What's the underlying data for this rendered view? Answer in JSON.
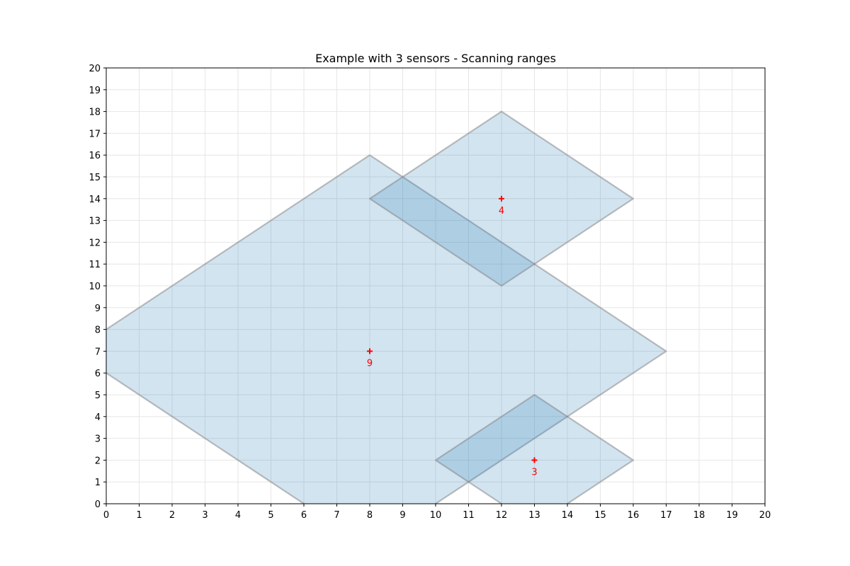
{
  "chart_data": {
    "type": "area",
    "title": "Example with 3 sensors - Scanning ranges",
    "xlabel": "",
    "ylabel": "",
    "xlim": [
      0,
      20
    ],
    "ylim": [
      0,
      20
    ],
    "x_ticks": [
      0,
      1,
      2,
      3,
      4,
      5,
      6,
      7,
      8,
      9,
      10,
      11,
      12,
      13,
      14,
      15,
      16,
      17,
      18,
      19,
      20
    ],
    "y_ticks": [
      0,
      1,
      2,
      3,
      4,
      5,
      6,
      7,
      8,
      9,
      10,
      11,
      12,
      13,
      14,
      15,
      16,
      17,
      18,
      19,
      20
    ],
    "grid": true,
    "sensors": [
      {
        "label": "9",
        "x": 8,
        "y": 7,
        "range": 9
      },
      {
        "label": "4",
        "x": 12,
        "y": 14,
        "range": 4
      },
      {
        "label": "3",
        "x": 13,
        "y": 2,
        "range": 3
      }
    ],
    "colors": {
      "fill": "#1f77b4",
      "edge": "#808080",
      "marker": "#ff0000",
      "grid": "#e6e6e6"
    }
  }
}
